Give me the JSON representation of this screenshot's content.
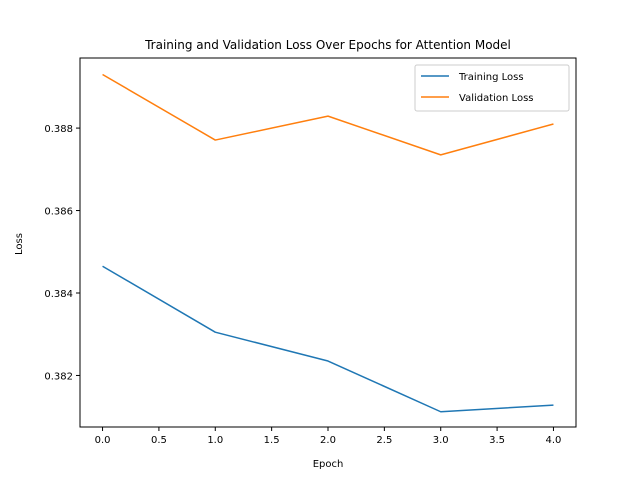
{
  "chart_data": {
    "type": "line",
    "title": "Training and Validation Loss Over Epochs for Attention Model",
    "xlabel": "Epoch",
    "ylabel": "Loss",
    "x": [
      0,
      1,
      2,
      3,
      4
    ],
    "xlim": [
      -0.2,
      4.2
    ],
    "ylim": [
      0.38075,
      0.3897
    ],
    "xticks": [
      0.0,
      0.5,
      1.0,
      1.5,
      2.0,
      2.5,
      3.0,
      3.5,
      4.0
    ],
    "xtick_labels": [
      "0.0",
      "0.5",
      "1.0",
      "1.5",
      "2.0",
      "2.5",
      "3.0",
      "3.5",
      "4.0"
    ],
    "yticks": [
      0.382,
      0.384,
      0.386,
      0.388
    ],
    "ytick_labels": [
      "0.382",
      "0.384",
      "0.386",
      "0.388"
    ],
    "grid": false,
    "legend_position": "top-right",
    "series": [
      {
        "name": "Training Loss",
        "color": "#1f77b4",
        "values": [
          0.38465,
          0.38305,
          0.38235,
          0.38112,
          0.38128
        ]
      },
      {
        "name": "Validation Loss",
        "color": "#ff7f0e",
        "values": [
          0.3893,
          0.38771,
          0.38829,
          0.38735,
          0.3881
        ]
      }
    ]
  }
}
